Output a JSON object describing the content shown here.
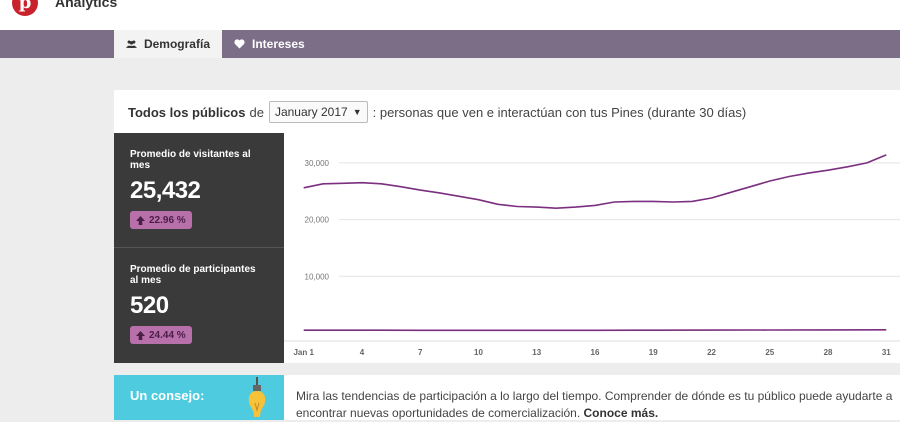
{
  "app": {
    "logo_letter": "p",
    "title": "Analytics"
  },
  "nav": {
    "tabs": [
      {
        "label": "Demografía",
        "icon": "people-icon",
        "active": true
      },
      {
        "label": "Intereses",
        "icon": "heart-icon",
        "active": false
      }
    ]
  },
  "header": {
    "audience": "Todos los públicos",
    "connector": "de",
    "month_select": "January 2017",
    "description": ": personas que ven e interactúan con tus Pines (durante 30 días)"
  },
  "stats": [
    {
      "label": "Promedio de visitantes al mes",
      "value": "25,432",
      "change": "22.96 %"
    },
    {
      "label": "Promedio de participantes al mes",
      "value": "520",
      "change": "24.44 %"
    }
  ],
  "chart_data": {
    "type": "line",
    "x_tick_labels": [
      "Jan 1",
      "4",
      "7",
      "10",
      "13",
      "16",
      "19",
      "22",
      "25",
      "28",
      "31"
    ],
    "x_tick_days": [
      1,
      4,
      7,
      10,
      13,
      16,
      19,
      22,
      25,
      28,
      31
    ],
    "y_tick_labels": [
      "30,000",
      "20,000",
      "10,000"
    ],
    "y_tick_values": [
      30000,
      20000,
      10000
    ],
    "ylim": [
      0,
      33500
    ],
    "xlim": [
      0.5,
      31.5
    ],
    "grid": true,
    "line_color": "#7b2f80",
    "series": [
      {
        "values": [
          [
            1,
            25600
          ],
          [
            2,
            26300
          ],
          [
            3,
            26400
          ],
          [
            4,
            26500
          ],
          [
            5,
            26300
          ],
          [
            6,
            25800
          ],
          [
            7,
            25200
          ],
          [
            8,
            24700
          ],
          [
            9,
            24100
          ],
          [
            10,
            23500
          ],
          [
            11,
            22700
          ],
          [
            12,
            22300
          ],
          [
            13,
            22200
          ],
          [
            14,
            22000
          ],
          [
            15,
            22200
          ],
          [
            16,
            22500
          ],
          [
            17,
            23100
          ],
          [
            18,
            23200
          ],
          [
            19,
            23200
          ],
          [
            20,
            23100
          ],
          [
            21,
            23200
          ],
          [
            22,
            23800
          ],
          [
            23,
            24800
          ],
          [
            24,
            25800
          ],
          [
            25,
            26800
          ],
          [
            26,
            27600
          ],
          [
            27,
            28200
          ],
          [
            28,
            28700
          ],
          [
            29,
            29300
          ],
          [
            30,
            30000
          ],
          [
            31,
            31400
          ]
        ]
      },
      {
        "values": [
          [
            1,
            500
          ],
          [
            4,
            500
          ],
          [
            7,
            480
          ],
          [
            10,
            470
          ],
          [
            13,
            470
          ],
          [
            16,
            480
          ],
          [
            19,
            500
          ],
          [
            22,
            510
          ],
          [
            25,
            530
          ],
          [
            28,
            540
          ],
          [
            31,
            560
          ]
        ]
      }
    ]
  },
  "tip": {
    "title": "Un consejo:",
    "text": "Mira las tendencias de participación a lo largo del tiempo. Comprender de dónde es tu público puede ayudarte a encontrar nuevas oportunidades de comercialización.",
    "link": "Conoce más."
  }
}
